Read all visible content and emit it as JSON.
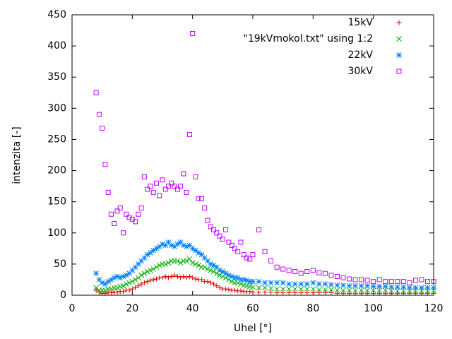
{
  "chart_data": {
    "type": "scatter",
    "xlabel": "Uhel [°]",
    "ylabel": "intenzita [-]",
    "xlim": [
      0,
      120
    ],
    "ylim": [
      0,
      450
    ],
    "xticks": [
      0,
      20,
      40,
      60,
      80,
      100,
      120
    ],
    "yticks": [
      0,
      50,
      100,
      150,
      200,
      250,
      300,
      350,
      400,
      450
    ],
    "grid": false,
    "legend": "top-right",
    "x": [
      8,
      9,
      10,
      11,
      12,
      13,
      14,
      15,
      16,
      17,
      18,
      19,
      20,
      21,
      22,
      23,
      24,
      25,
      26,
      27,
      28,
      29,
      30,
      31,
      32,
      33,
      34,
      35,
      36,
      37,
      38,
      39,
      40,
      41,
      42,
      43,
      44,
      45,
      46,
      47,
      48,
      49,
      50,
      51,
      52,
      53,
      54,
      55,
      56,
      57,
      58,
      59,
      60,
      62,
      64,
      66,
      68,
      70,
      72,
      74,
      76,
      78,
      80,
      82,
      84,
      86,
      88,
      90,
      92,
      94,
      96,
      98,
      100,
      102,
      104,
      106,
      108,
      110,
      112,
      114,
      116,
      118,
      120
    ],
    "series": [
      {
        "name": "15kV",
        "color": "#e00000",
        "marker": "plus",
        "values": [
          8,
          5,
          3,
          3,
          4,
          4,
          5,
          5,
          6,
          6,
          8,
          8,
          10,
          12,
          15,
          18,
          20,
          22,
          24,
          25,
          26,
          28,
          28,
          30,
          28,
          30,
          32,
          30,
          28,
          30,
          28,
          30,
          28,
          26,
          25,
          25,
          22,
          22,
          20,
          18,
          15,
          12,
          10,
          10,
          9,
          8,
          8,
          7,
          7,
          6,
          6,
          6,
          5,
          5,
          5,
          5,
          4,
          4,
          4,
          4,
          4,
          4,
          4,
          4,
          4,
          4,
          3,
          3,
          3,
          3,
          3,
          3,
          3,
          3,
          3,
          3,
          3,
          3,
          3,
          3,
          3,
          3,
          3
        ]
      },
      {
        "name": "\"19kVmokol.txt\" using 1:2",
        "color": "#00b000",
        "marker": "cross",
        "values": [
          12,
          8,
          8,
          8,
          10,
          10,
          12,
          12,
          14,
          15,
          18,
          20,
          22,
          25,
          28,
          32,
          35,
          38,
          40,
          42,
          45,
          48,
          50,
          50,
          52,
          55,
          55,
          55,
          52,
          55,
          55,
          58,
          52,
          50,
          48,
          45,
          45,
          42,
          40,
          38,
          35,
          32,
          30,
          28,
          25,
          22,
          20,
          20,
          18,
          16,
          15,
          14,
          13,
          12,
          12,
          11,
          10,
          10,
          10,
          10,
          10,
          10,
          10,
          9,
          9,
          9,
          8,
          8,
          8,
          8,
          8,
          8,
          8,
          8,
          8,
          7,
          7,
          7,
          7,
          7,
          7,
          7,
          7
        ]
      },
      {
        "name": "22kV",
        "color": "#0080ff",
        "marker": "star",
        "values": [
          35,
          25,
          20,
          18,
          22,
          25,
          28,
          30,
          28,
          30,
          32,
          35,
          40,
          45,
          50,
          55,
          60,
          65,
          68,
          72,
          75,
          78,
          82,
          80,
          85,
          80,
          78,
          82,
          85,
          80,
          78,
          80,
          75,
          72,
          68,
          65,
          60,
          55,
          50,
          48,
          45,
          40,
          38,
          35,
          32,
          30,
          28,
          28,
          25,
          25,
          24,
          22,
          22,
          22,
          20,
          20,
          20,
          20,
          18,
          18,
          18,
          18,
          20,
          18,
          18,
          17,
          16,
          16,
          15,
          15,
          15,
          15,
          14,
          14,
          14,
          13,
          13,
          13,
          12,
          12,
          12,
          12,
          12
        ]
      },
      {
        "name": "30kV",
        "color": "#c000ff",
        "marker": "square",
        "values": [
          325,
          290,
          268,
          210,
          165,
          130,
          115,
          135,
          140,
          100,
          130,
          125,
          122,
          118,
          130,
          140,
          190,
          170,
          175,
          165,
          180,
          160,
          185,
          170,
          175,
          180,
          175,
          170,
          175,
          195,
          165,
          258,
          420,
          190,
          155,
          155,
          140,
          120,
          110,
          105,
          100,
          95,
          90,
          105,
          85,
          80,
          75,
          70,
          85,
          65,
          60,
          58,
          65,
          105,
          70,
          55,
          45,
          42,
          40,
          38,
          35,
          38,
          40,
          36,
          35,
          32,
          30,
          28,
          26,
          25,
          25,
          24,
          22,
          25,
          22,
          22,
          22,
          22,
          20,
          24,
          25,
          22,
          22
        ]
      }
    ]
  }
}
